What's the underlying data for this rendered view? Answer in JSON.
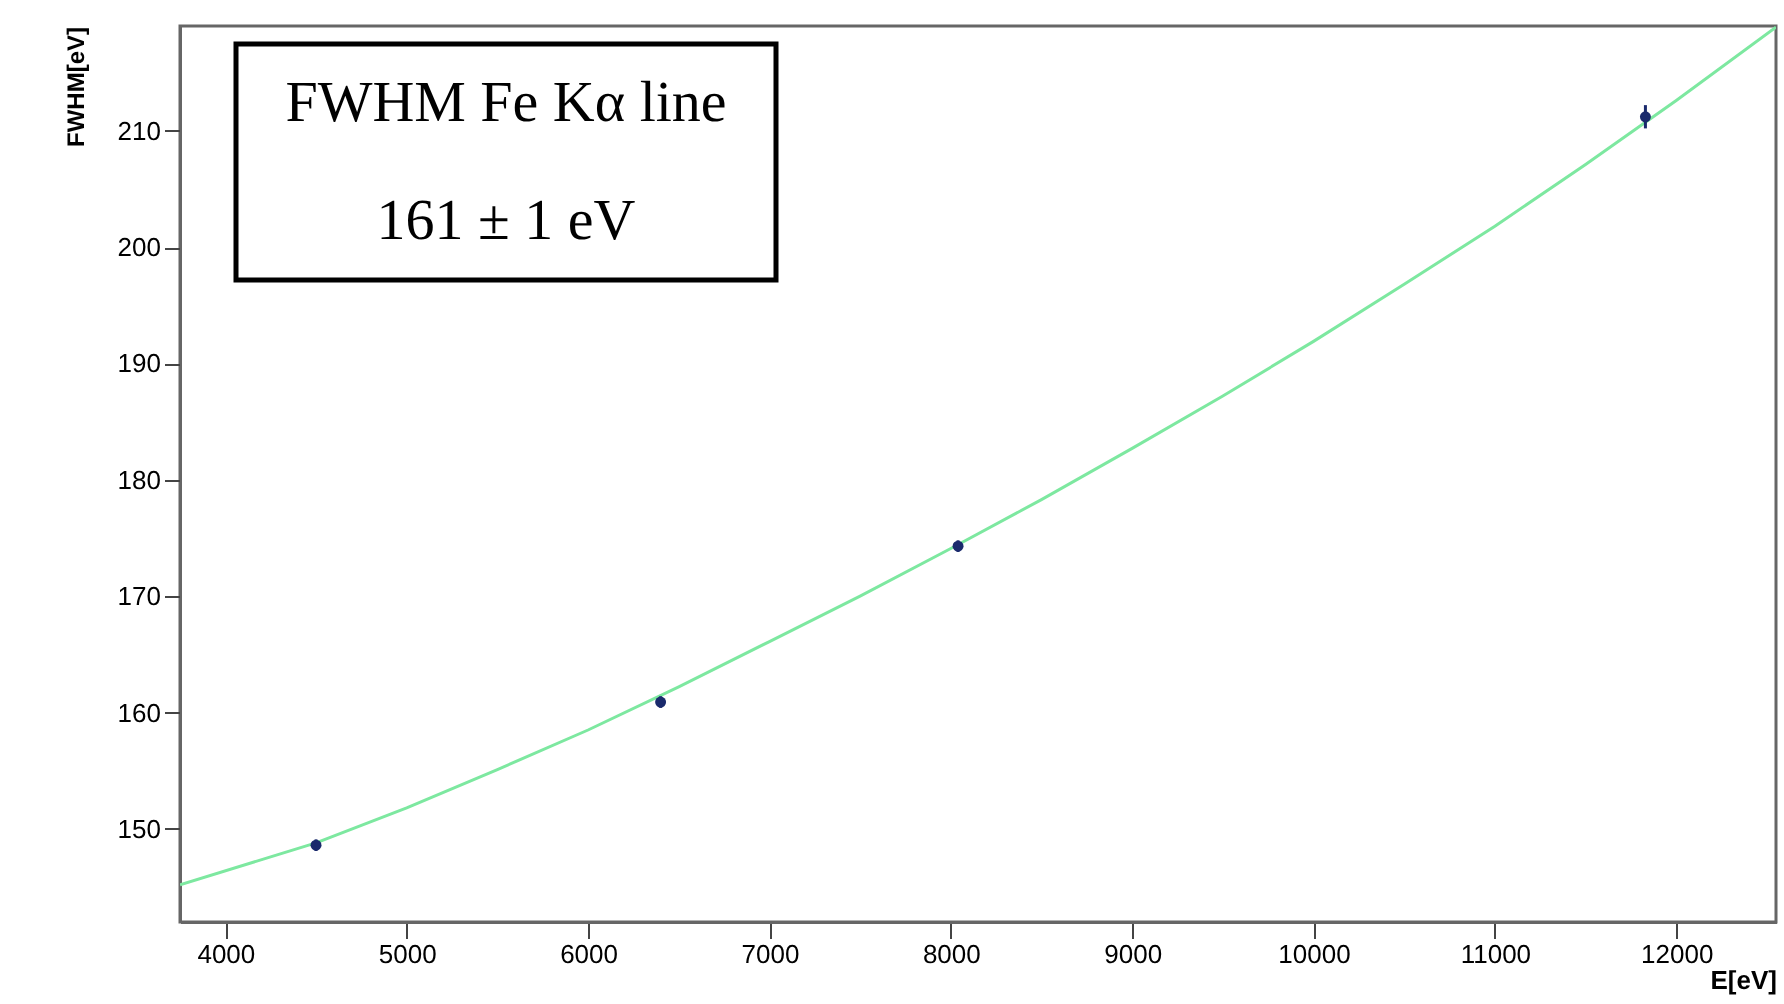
{
  "chart_data": {
    "type": "scatter",
    "xlabel": "E[eV]",
    "ylabel": "FWHM[eV]",
    "annotations": [
      "FWHM Fe Kα line",
      "161 ± 1 eV"
    ],
    "xlim": [
      3750,
      12550
    ],
    "xticks": [
      4000,
      5000,
      6000,
      7000,
      8000,
      9000,
      10000,
      11000,
      12000
    ],
    "ylim": [
      142,
      219
    ],
    "yticks": [
      150,
      160,
      170,
      180,
      190,
      200,
      210
    ],
    "grid": false,
    "marker": "circle",
    "series": [
      {
        "color": "#1a2a6c",
        "x": [
          4500,
          6400,
          8040,
          11830
        ],
        "values": [
          148.6,
          160.9,
          174.3,
          211.2
        ],
        "errors": [
          0.5,
          0.5,
          0.5,
          1
        ]
      },
      {
        "type": "line",
        "color": "#7de8a0",
        "marker": "none",
        "line_style": "solid",
        "x": [
          3750,
          4500,
          5000,
          5500,
          6000,
          6500,
          7000,
          7500,
          8000,
          8500,
          9000,
          9500,
          10000,
          10500,
          11000,
          11500,
          12000,
          12550
        ],
        "values": [
          145.2,
          148.8,
          151.8,
          155.1,
          158.5,
          162.2,
          166.1,
          170.0,
          174.1,
          178.3,
          182.7,
          187.2,
          191.9,
          196.8,
          201.8,
          207.1,
          212.6,
          218.9
        ]
      }
    ]
  }
}
